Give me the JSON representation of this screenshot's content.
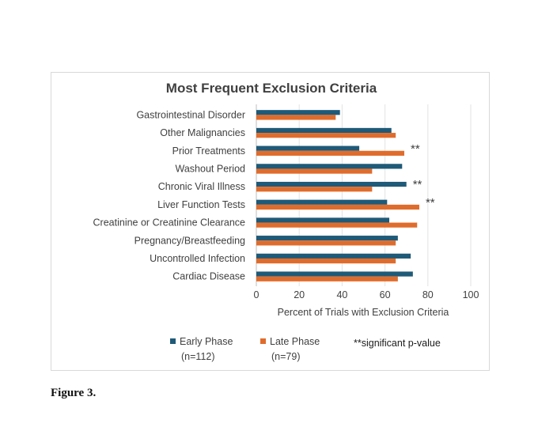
{
  "chart_data": {
    "type": "bar",
    "orientation": "horizontal",
    "title": "Most Frequent Exclusion Criteria",
    "xlabel": "Percent of Trials with Exclusion Criteria",
    "ylabel": "",
    "xlim": [
      0,
      100
    ],
    "xticks": [
      "0",
      "20",
      "40",
      "60",
      "80",
      "100"
    ],
    "grid": true,
    "legend_position": "bottom",
    "categories": [
      "Gastrointestinal Disorder",
      "Other Malignancies",
      "Prior Treatments",
      "Washout Period",
      "Chronic Viral Illness",
      "Liver Function Tests",
      "Creatinine or Creatinine Clearance",
      "Pregnancy/Breastfeeding",
      "Uncontrolled Infection",
      "Cardiac Disease"
    ],
    "series": [
      {
        "name": "Early Phase",
        "subname": "(n=112)",
        "color": "#1f5a78",
        "values": [
          39,
          63,
          48,
          68,
          70,
          61,
          62,
          66,
          72,
          73
        ]
      },
      {
        "name": "Late Phase",
        "subname": "(n=79)",
        "color": "#e06c2c",
        "values": [
          37,
          65,
          69,
          54,
          54,
          76,
          75,
          65,
          65,
          66
        ]
      }
    ],
    "annotations": [
      {
        "category_index": 2,
        "text": "**"
      },
      {
        "category_index": 4,
        "text": "**"
      },
      {
        "category_index": 5,
        "text": "**"
      }
    ],
    "note": "**significant p-value"
  },
  "caption": "Figure 3."
}
